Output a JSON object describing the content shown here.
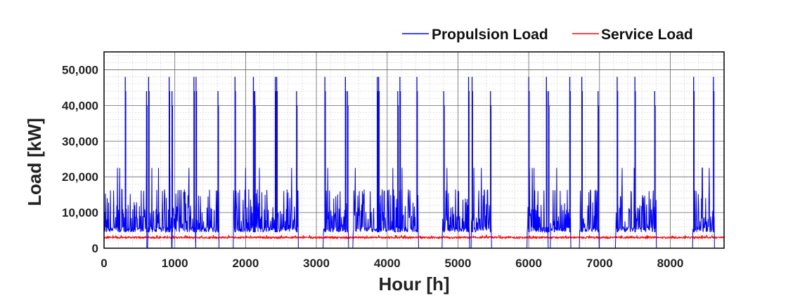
{
  "chart_data": {
    "type": "line",
    "xlabel": "Hour [h]",
    "ylabel": "Load [kW]",
    "xlim": [
      0,
      8760
    ],
    "ylim": [
      0,
      55000
    ],
    "x_ticks": [
      0,
      1000,
      2000,
      3000,
      4000,
      5000,
      6000,
      7000,
      8000
    ],
    "x_tick_labels": [
      "0",
      "1000",
      "2000",
      "3000",
      "4000",
      "5000",
      "6000",
      "7000",
      "8000"
    ],
    "y_ticks": [
      0,
      10000,
      20000,
      30000,
      40000,
      50000
    ],
    "y_tick_labels": [
      "0",
      "10,000",
      "20,000",
      "30,000",
      "40,000",
      "50,000"
    ],
    "grid": true,
    "legend_position": "top-right, outside plot",
    "series": [
      {
        "name": "Propulsion Load",
        "color": "#0000ff",
        "base_load": 4500,
        "peak_load": 48000,
        "operating_intervals": [
          [
            0,
            600
          ],
          [
            620,
            950
          ],
          [
            965,
            1290
          ],
          [
            1300,
            1620
          ],
          [
            1830,
            2740
          ],
          [
            3100,
            3450
          ],
          [
            3520,
            4440
          ],
          [
            4780,
            5160
          ],
          [
            5190,
            5470
          ],
          [
            5980,
            6270
          ],
          [
            6310,
            6590
          ],
          [
            6720,
            6990
          ],
          [
            7230,
            7800
          ],
          [
            8320,
            8620
          ]
        ],
        "peak_hours": [
          300,
          600,
          630,
          920,
          960,
          1270,
          1300,
          1610,
          1850,
          2110,
          2130,
          2420,
          2440,
          2720,
          3120,
          3410,
          3440,
          3860,
          3880,
          4150,
          4180,
          4420,
          4800,
          5150,
          5200,
          5460,
          6000,
          6250,
          6280,
          6580,
          6750,
          6980,
          7250,
          7500,
          7780,
          8330,
          8610
        ]
      },
      {
        "name": "Service Load",
        "color": "#ff0000",
        "typical_value": 3000,
        "range": [
          2600,
          3700
        ]
      }
    ]
  }
}
